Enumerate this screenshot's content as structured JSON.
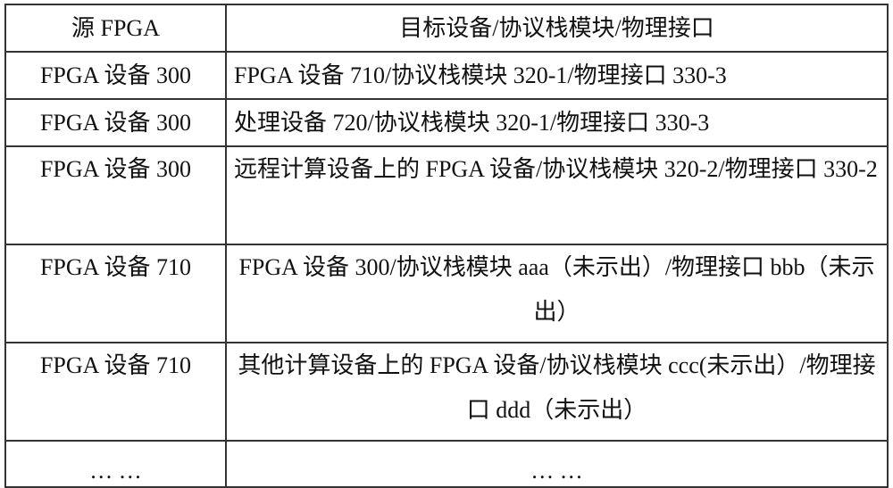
{
  "table": {
    "headers": [
      "源 FPGA",
      "目标设备/协议栈模块/物理接口"
    ],
    "rows": [
      {
        "source": "FPGA 设备 300",
        "target": "FPGA 设备 710/协议栈模块 320-1/物理接口 330-3"
      },
      {
        "source": "FPGA 设备 300",
        "target": "处理设备 720/协议栈模块 320-1/物理接口 330-3"
      },
      {
        "source": "FPGA 设备 300",
        "target": "远程计算设备上的 FPGA 设备/协议栈模块 320-2/物理接口 330-2"
      },
      {
        "source": "FPGA 设备 710",
        "target": "FPGA 设备 300/协议栈模块 aaa（未示出）/物理接口 bbb（未示出）"
      },
      {
        "source": "FPGA 设备 710",
        "target": "其他计算设备上的 FPGA 设备/协议栈模块 ccc(未示出）/物理接口 ddd（未示出）"
      },
      {
        "source": "… …",
        "target": "… …"
      }
    ]
  }
}
